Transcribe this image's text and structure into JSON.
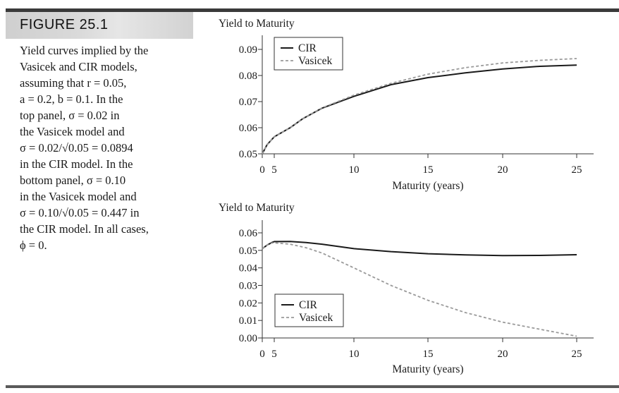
{
  "figure": {
    "title": "FIGURE 25.1",
    "caption_lines": [
      "Yield curves implied by the",
      "Vasicek and CIR models,",
      "assuming that r = 0.05,",
      "a = 0.2, b = 0.1. In the",
      "top panel, σ = 0.02 in",
      "the Vasicek model and",
      "σ = 0.02/√0.05 = 0.0894",
      "in the CIR model. In the",
      "bottom panel, σ = 0.10",
      "in the Vasicek model and",
      "σ = 0.10/√0.05 = 0.447 in",
      "the CIR model. In all cases,",
      "ϕ = 0."
    ]
  },
  "colors": {
    "cir": "#1a1a1a",
    "vasicek": "#9a9a9a"
  },
  "chart_data": [
    {
      "type": "line",
      "title": "",
      "ylabel": "Yield to Maturity",
      "xlabel": "Maturity (years)",
      "xticks": [
        "0",
        "5",
        "10",
        "15",
        "20",
        "25"
      ],
      "yticks": [
        "0.05",
        "0.06",
        "0.07",
        "0.08",
        "0.09"
      ],
      "ylim": [
        0.05,
        0.095
      ],
      "legend": {
        "position": "top-left",
        "entries": [
          "CIR",
          "Vasicek"
        ]
      },
      "series": [
        {
          "name": "CIR",
          "style": "solid",
          "x": [
            0,
            2,
            5,
            6,
            6.8,
            8,
            10,
            12.5,
            15,
            17.5,
            20,
            22.5,
            25
          ],
          "y": [
            0.05,
            0.0535,
            0.0565,
            0.06,
            0.0635,
            0.0675,
            0.072,
            0.0765,
            0.0792,
            0.081,
            0.0825,
            0.0835,
            0.084
          ]
        },
        {
          "name": "Vasicek",
          "style": "dashed",
          "x": [
            0,
            2,
            5,
            6,
            6.8,
            8,
            10,
            12.5,
            15,
            17.5,
            20,
            22.5,
            25
          ],
          "y": [
            0.05,
            0.0535,
            0.0565,
            0.06,
            0.0635,
            0.0676,
            0.0725,
            0.077,
            0.0805,
            0.083,
            0.0848,
            0.0858,
            0.0865
          ]
        }
      ]
    },
    {
      "type": "line",
      "title": "",
      "ylabel": "Yield to Maturity",
      "xlabel": "Maturity (years)",
      "xticks": [
        "0",
        "5",
        "10",
        "15",
        "20",
        "25"
      ],
      "yticks": [
        "0.00",
        "0.01",
        "0.02",
        "0.03",
        "0.04",
        "0.05",
        "0.06"
      ],
      "ylim": [
        0.0,
        0.066
      ],
      "legend": {
        "position": "bottom-left",
        "entries": [
          "CIR",
          "Vasicek"
        ]
      },
      "series": [
        {
          "name": "CIR",
          "style": "solid",
          "x": [
            0,
            2,
            4,
            5,
            6,
            7,
            8,
            10,
            12.5,
            15,
            17.5,
            20,
            22.5,
            25
          ],
          "y": [
            0.051,
            0.053,
            0.0545,
            0.055,
            0.0551,
            0.0545,
            0.0535,
            0.051,
            0.0493,
            0.0481,
            0.0474,
            0.047,
            0.0471,
            0.0475
          ]
        },
        {
          "name": "Vasicek",
          "style": "dashed",
          "x": [
            0,
            2,
            4,
            5,
            6,
            7,
            8,
            10,
            12.5,
            15,
            17.5,
            20,
            22.5,
            25
          ],
          "y": [
            0.051,
            0.053,
            0.0542,
            0.0543,
            0.0535,
            0.0515,
            0.0485,
            0.04,
            0.03,
            0.0215,
            0.0145,
            0.009,
            0.005,
            0.001
          ]
        }
      ]
    }
  ]
}
